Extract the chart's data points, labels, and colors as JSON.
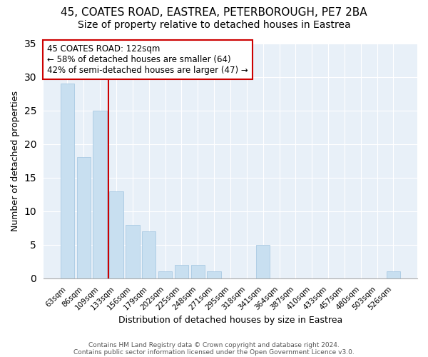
{
  "title1": "45, COATES ROAD, EASTREA, PETERBOROUGH, PE7 2BA",
  "title2": "Size of property relative to detached houses in Eastrea",
  "xlabel": "Distribution of detached houses by size in Eastrea",
  "ylabel": "Number of detached properties",
  "bar_color": "#c8dff0",
  "bar_edge_color": "#a0c4e0",
  "vline_color": "#cc0000",
  "categories": [
    "63sqm",
    "86sqm",
    "109sqm",
    "133sqm",
    "156sqm",
    "179sqm",
    "202sqm",
    "225sqm",
    "248sqm",
    "271sqm",
    "295sqm",
    "318sqm",
    "341sqm",
    "364sqm",
    "387sqm",
    "410sqm",
    "433sqm",
    "457sqm",
    "480sqm",
    "503sqm",
    "526sqm"
  ],
  "values": [
    29,
    18,
    25,
    13,
    8,
    7,
    1,
    2,
    2,
    1,
    0,
    0,
    5,
    0,
    0,
    0,
    0,
    0,
    0,
    0,
    1
  ],
  "ylim": [
    0,
    35
  ],
  "yticks": [
    0,
    5,
    10,
    15,
    20,
    25,
    30,
    35
  ],
  "annotation_title": "45 COATES ROAD: 122sqm",
  "annotation_line1": "← 58% of detached houses are smaller (64)",
  "annotation_line2": "42% of semi-detached houses are larger (47) →",
  "footer1": "Contains HM Land Registry data © Crown copyright and database right 2024.",
  "footer2": "Contains public sector information licensed under the Open Government Licence v3.0.",
  "background_color": "#ffffff",
  "plot_bg_color": "#e8f0f8",
  "grid_color": "#ffffff",
  "title_fontsize": 11,
  "subtitle_fontsize": 10,
  "annotation_box_edgecolor": "#cc0000",
  "annotation_box_facecolor": "#ffffff",
  "vline_index": 2
}
